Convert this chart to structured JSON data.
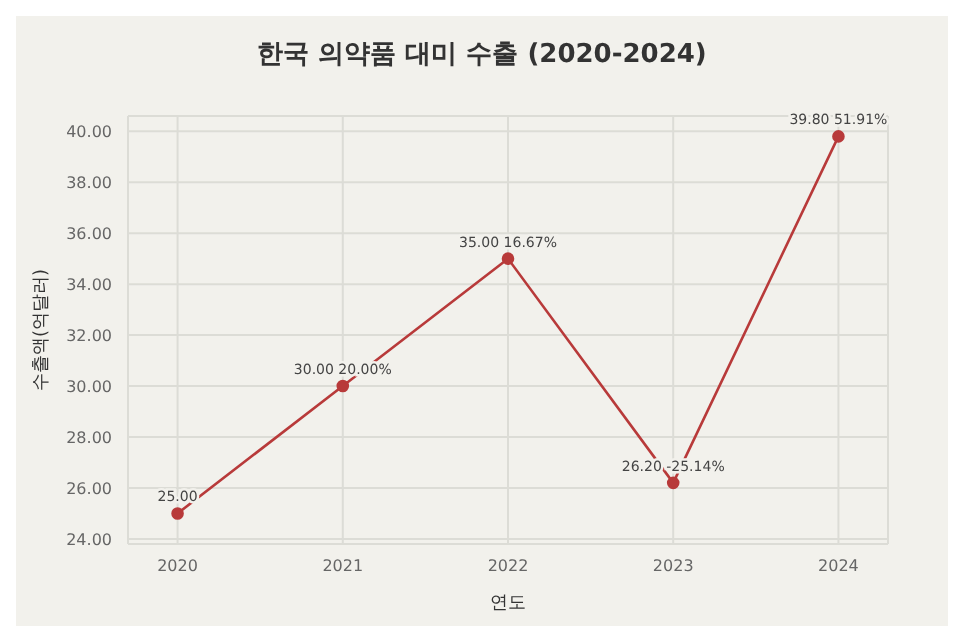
{
  "chart_data": {
    "type": "line",
    "title": "한국 의약품 대미 수출 (2020-2024)",
    "xlabel": "연도",
    "ylabel": "수출액(억달러)",
    "categories": [
      "2020",
      "2021",
      "2022",
      "2023",
      "2024"
    ],
    "series": [
      {
        "color": "#b83a3a",
        "values": [
          25.0,
          30.0,
          35.0,
          26.2,
          39.8
        ],
        "value_labels": [
          "25.00",
          "30.00 20.00%",
          "35.00 16.67%",
          "26.20 -25.14%",
          "39.80 51.91%"
        ]
      }
    ],
    "ylim": [
      23.8,
      40.6
    ],
    "yticks": [
      {
        "value": 24,
        "label": "24.00"
      },
      {
        "value": 26,
        "label": "26.00"
      },
      {
        "value": 28,
        "label": "28.00"
      },
      {
        "value": 30,
        "label": "30.00"
      },
      {
        "value": 32,
        "label": "32.00"
      },
      {
        "value": 34,
        "label": "34.00"
      },
      {
        "value": 36,
        "label": "36.00"
      },
      {
        "value": 38,
        "label": "38.00"
      },
      {
        "value": 40,
        "label": "40.00"
      }
    ],
    "grid": true,
    "marker": "circle",
    "line_style": "solid",
    "legend": false
  }
}
